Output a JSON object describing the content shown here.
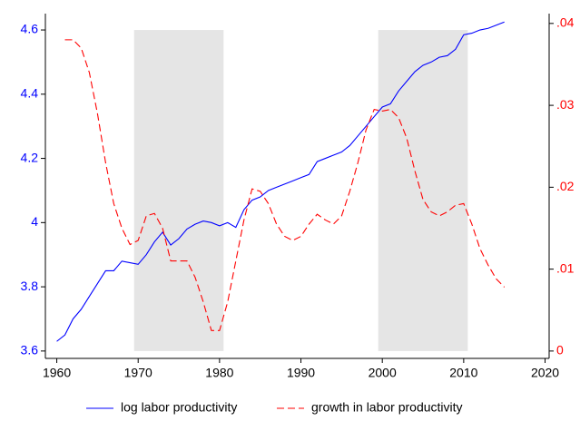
{
  "chart_data": {
    "type": "line",
    "x": [
      1960,
      1961,
      1962,
      1963,
      1964,
      1965,
      1966,
      1967,
      1968,
      1969,
      1970,
      1971,
      1972,
      1973,
      1974,
      1975,
      1976,
      1977,
      1978,
      1979,
      1980,
      1981,
      1982,
      1983,
      1984,
      1985,
      1986,
      1987,
      1988,
      1989,
      1990,
      1991,
      1992,
      1993,
      1994,
      1995,
      1996,
      1997,
      1998,
      1999,
      2000,
      2001,
      2002,
      2003,
      2004,
      2005,
      2006,
      2007,
      2008,
      2009,
      2010,
      2011,
      2012,
      2013,
      2014,
      2015
    ],
    "series": [
      {
        "name": "log labor productivity",
        "color": "#0000ff",
        "line_style": "solid",
        "values": [
          3.63,
          3.65,
          3.7,
          3.73,
          3.77,
          3.81,
          3.85,
          3.85,
          3.88,
          3.875,
          3.87,
          3.9,
          3.94,
          3.97,
          3.93,
          3.95,
          3.98,
          3.995,
          4.005,
          4.0,
          3.99,
          4.0,
          3.985,
          4.04,
          4.07,
          4.08,
          4.1,
          4.11,
          4.12,
          4.13,
          4.14,
          4.15,
          4.19,
          4.2,
          4.21,
          4.22,
          4.24,
          4.27,
          4.3,
          4.33,
          4.36,
          4.37,
          4.41,
          4.44,
          4.47,
          4.49,
          4.5,
          4.515,
          4.52,
          4.54,
          4.585,
          4.59,
          4.6,
          4.605,
          4.615,
          4.625
        ]
      },
      {
        "name": "growth in labor productivity",
        "color": "#ff0000",
        "line_style": "dashed",
        "axis": "y2",
        "values": [
          null,
          0.038,
          0.038,
          0.037,
          0.034,
          0.029,
          0.023,
          0.018,
          0.015,
          0.013,
          0.0135,
          0.0165,
          0.0168,
          0.015,
          0.011,
          0.011,
          0.011,
          0.009,
          0.006,
          0.0025,
          0.0025,
          0.006,
          0.011,
          0.016,
          0.0198,
          0.0195,
          0.018,
          0.0155,
          0.014,
          0.0135,
          0.014,
          0.0155,
          0.0167,
          0.016,
          0.0155,
          0.0165,
          0.0195,
          0.023,
          0.027,
          0.0295,
          0.0293,
          0.0295,
          0.0285,
          0.026,
          0.022,
          0.0185,
          0.017,
          0.0165,
          0.017,
          0.0178,
          0.018,
          0.0155,
          0.0125,
          0.0105,
          0.0088,
          0.0078
        ]
      }
    ],
    "bands": [
      {
        "x": [
          1969.5,
          1980.5
        ],
        "y": [
          3.6,
          4.6
        ],
        "color": "#e5e5e5"
      },
      {
        "x": [
          1999.5,
          2010.5
        ],
        "y": [
          3.6,
          4.6
        ],
        "color": "#e5e5e5"
      }
    ],
    "xlim": [
      1958.6,
      2020.5
    ],
    "xticks": [
      1960,
      1970,
      1980,
      1990,
      2000,
      2010,
      2020
    ],
    "ylim": [
      3.577,
      4.651
    ],
    "yticks": [
      3.6,
      3.8,
      4,
      4.2,
      4.4,
      4.6
    ],
    "ytick_color": "#0000ff",
    "y2lim": [
      -0.0009,
      0.0412
    ],
    "y2ticks": [
      {
        "value": 0,
        "label": "0"
      },
      {
        "value": 0.01,
        "label": ".01"
      },
      {
        "value": 0.02,
        "label": ".02"
      },
      {
        "value": 0.03,
        "label": ".03"
      },
      {
        "value": 0.04,
        "label": ".04"
      }
    ],
    "y2tick_color": "#ff0000",
    "legend": "bottom"
  }
}
